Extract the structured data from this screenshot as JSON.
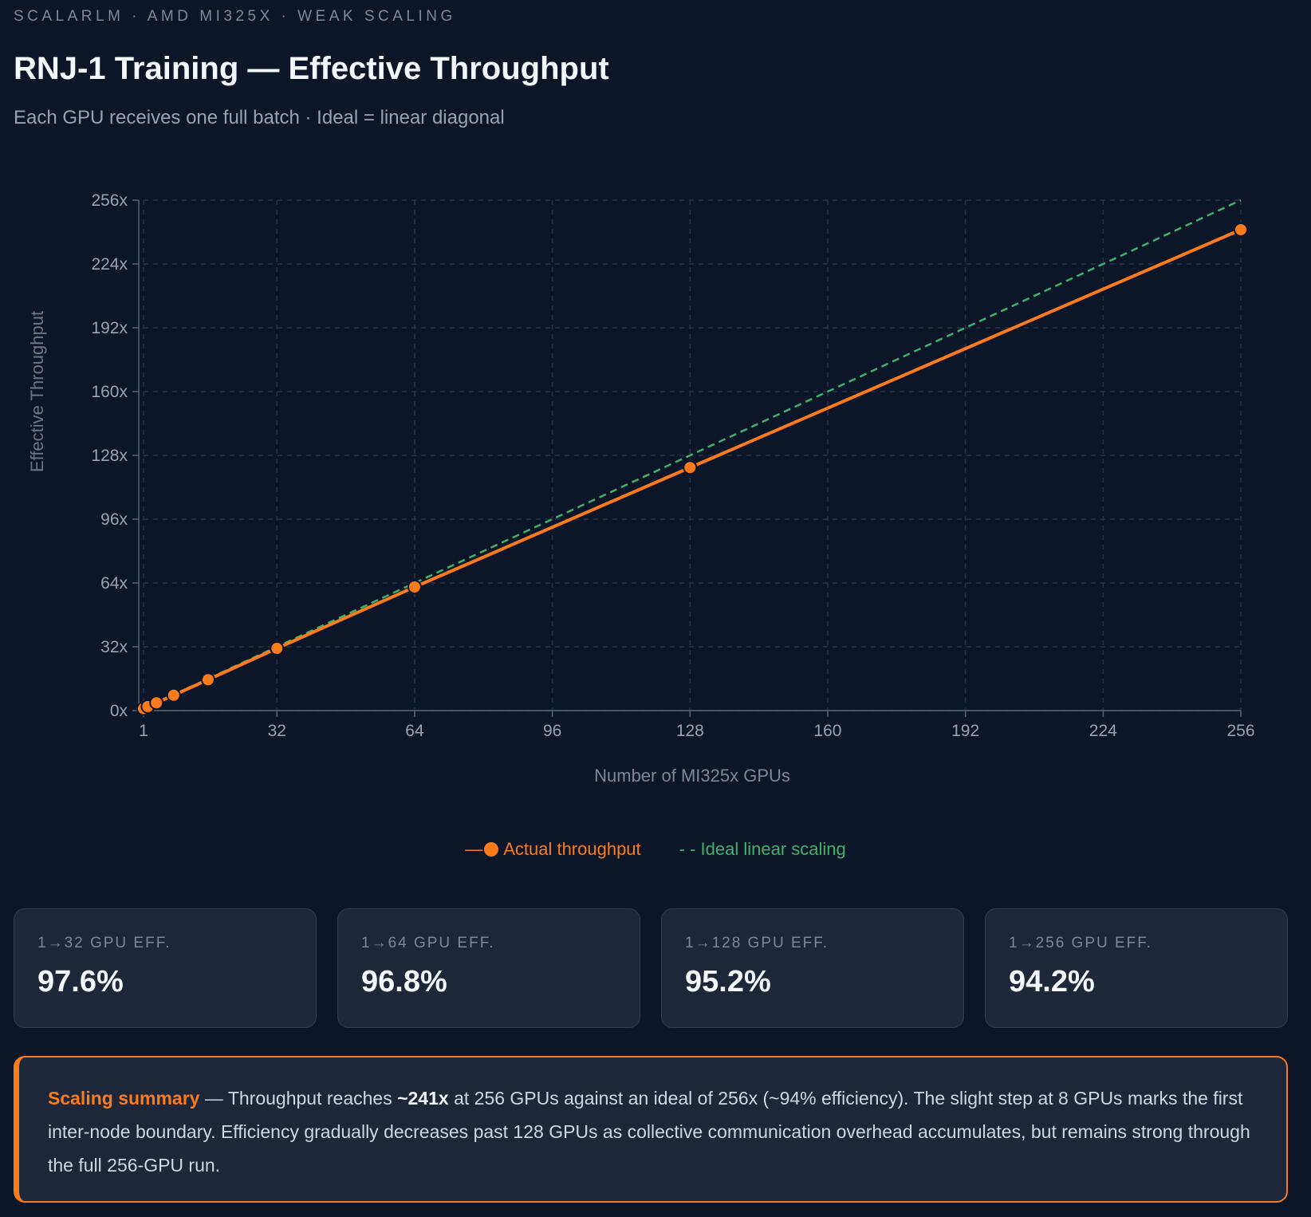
{
  "header": {
    "eyebrow": "SCALARLM · AMD MI325X · WEAK SCALING",
    "title": "RNJ-1 Training — Effective Throughput",
    "subtitle": "Each GPU receives one full batch · Ideal = linear diagonal"
  },
  "chart_data": {
    "type": "line",
    "xlabel": "Number of MI325x GPUs",
    "ylabel": "Effective Throughput",
    "xlim": [
      1,
      256
    ],
    "ylim": [
      0,
      256
    ],
    "xticks": [
      "1",
      "32",
      "64",
      "96",
      "128",
      "160",
      "192",
      "224",
      "256"
    ],
    "yticks": [
      "0x",
      "32x",
      "64x",
      "96x",
      "128x",
      "160x",
      "192x",
      "224x",
      "256x"
    ],
    "grid": true,
    "legend_placement": "bottom",
    "series": [
      {
        "name": "Actual throughput",
        "color": "#f97b1c",
        "style": "solid-markers",
        "x": [
          1,
          2,
          4,
          8,
          16,
          32,
          64,
          128,
          256
        ],
        "y": [
          1,
          2,
          3.9,
          7.7,
          15.5,
          31.2,
          62,
          121.9,
          241.2
        ]
      },
      {
        "name": "Ideal linear scaling",
        "color": "#3fb26a",
        "style": "dashed",
        "x": [
          1,
          256
        ],
        "y": [
          1,
          256
        ]
      }
    ]
  },
  "legend": {
    "actual": "Actual throughput",
    "ideal": "- - Ideal linear scaling"
  },
  "cards": [
    {
      "label": "1→32 GPU EFF.",
      "value": "97.6%"
    },
    {
      "label": "1→64 GPU EFF.",
      "value": "96.8%"
    },
    {
      "label": "1→128 GPU EFF.",
      "value": "95.2%"
    },
    {
      "label": "1→256 GPU EFF.",
      "value": "94.2%"
    }
  ],
  "summary": {
    "heading": "Scaling summary",
    "dash": " — Throughput reaches ",
    "bold": "~241x",
    "rest": " at 256 GPUs against an ideal of 256x (~94% efficiency). The slight step at 8 GPUs marks the first inter-node boundary. Efficiency gradually decreases past 128 GPUs as collective communication overhead accumulates, but remains strong through the full 256-GPU run."
  }
}
